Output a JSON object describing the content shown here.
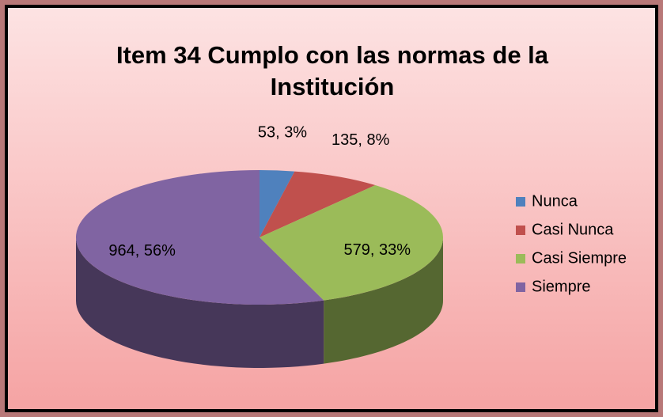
{
  "chart_data": {
    "type": "pie3d",
    "title": "Item 34 Cumplo con las normas de la Institución",
    "categories": [
      "Nunca",
      "Casi Nunca",
      "Casi Siempre",
      "Siempre"
    ],
    "values": [
      53,
      135,
      579,
      964
    ],
    "value_labels": [
      "53, 3%",
      "135, 8%",
      "579, 33%",
      "964, 56%"
    ],
    "colors": [
      "#4f81bd",
      "#c0504d",
      "#9bbb59",
      "#8064a2"
    ],
    "legend": "right"
  }
}
